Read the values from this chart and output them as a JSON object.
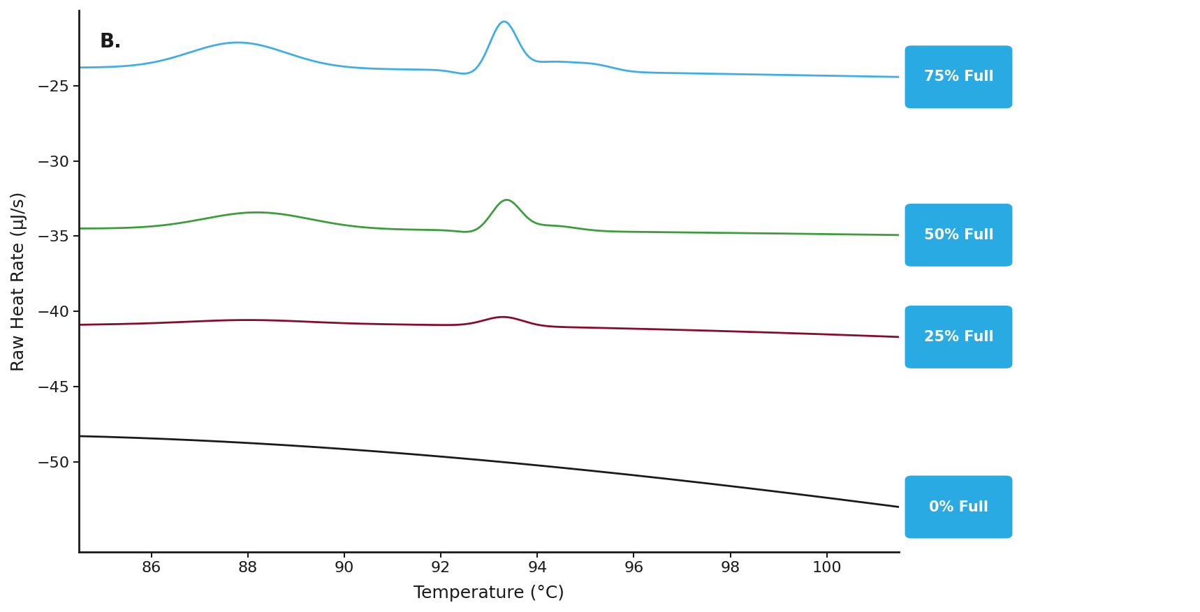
{
  "title": "B.",
  "xlabel": "Temperature (°C)",
  "ylabel": "Raw Heat Rate (μJ/s)",
  "xlim": [
    84.5,
    101.5
  ],
  "ylim": [
    -56,
    -20
  ],
  "xticks": [
    86,
    88,
    90,
    92,
    94,
    96,
    98,
    100
  ],
  "yticks": [
    -25,
    -30,
    -35,
    -40,
    -45,
    -50
  ],
  "line_colors": [
    "#3daee9",
    "#3a9e3a",
    "#8b0a2a",
    "#1a1a1a"
  ],
  "legend_labels": [
    "75% Full",
    "50% Full",
    "25% Full",
    "0% Full"
  ],
  "legend_color": "#29aae2",
  "background_color": "#ffffff",
  "axes_color": "#1a1a1a",
  "label_fontsize": 18,
  "tick_fontsize": 16,
  "title_fontsize": 20,
  "line_width": 2.0
}
